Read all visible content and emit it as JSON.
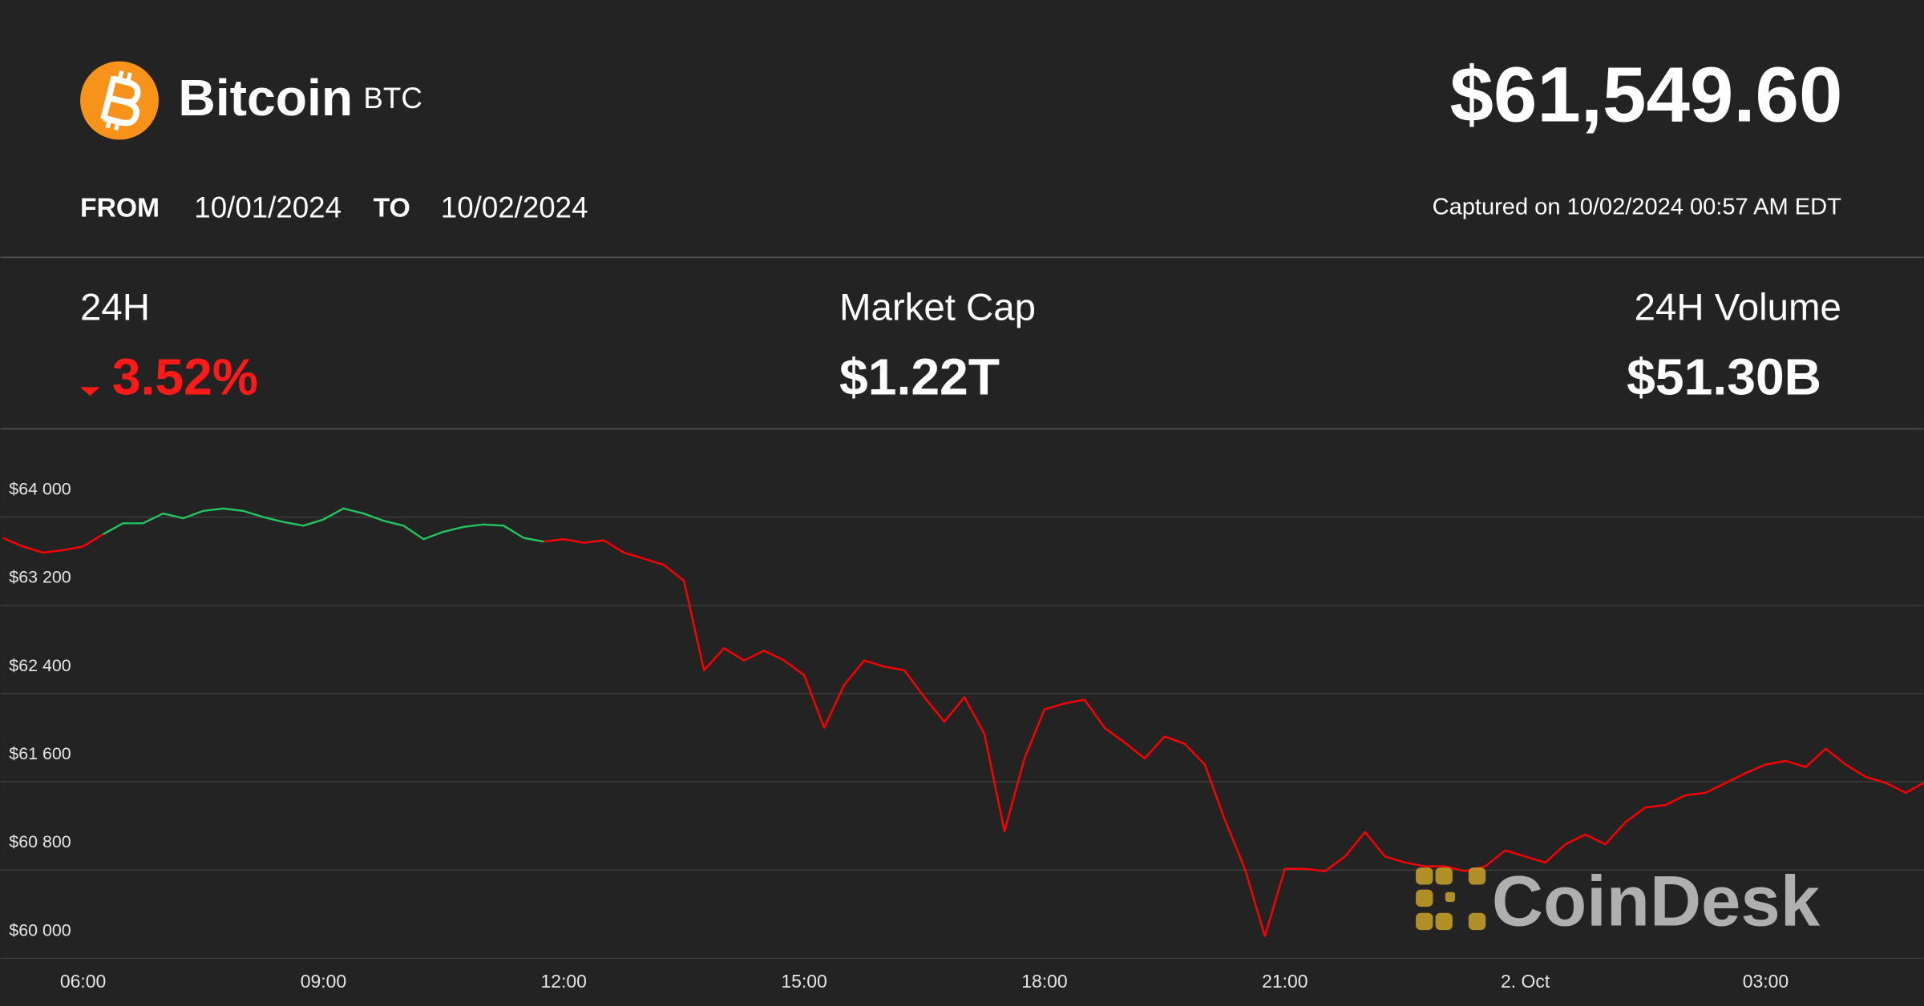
{
  "header": {
    "name": "Bitcoin",
    "symbol": "BTC",
    "price": "$61,549.60",
    "from_label": "FROM",
    "from_date": "10/01/2024",
    "to_label": "TO",
    "to_date": "10/02/2024",
    "captured": "Captured on 10/02/2024 00:57 AM EDT"
  },
  "stats": [
    {
      "label": "24H",
      "value": "3.52%"
    },
    {
      "label": "Market Cap",
      "value": "$1.22T"
    },
    {
      "label": "24H Volume",
      "value": "$51.30B"
    }
  ],
  "watermark": "CoinDesk",
  "chart_data": {
    "type": "line",
    "x": [
      5,
      5.25,
      5.5,
      5.75,
      6,
      6.25,
      6.5,
      6.75,
      7,
      7.25,
      7.5,
      7.75,
      8,
      8.25,
      8.5,
      8.75,
      9,
      9.25,
      9.5,
      9.75,
      10,
      10.25,
      10.5,
      10.75,
      11,
      11.25,
      11.5,
      11.75,
      12,
      12.25,
      12.5,
      12.75,
      13,
      13.25,
      13.5,
      13.75,
      14,
      14.25,
      14.5,
      14.75,
      15,
      15.25,
      15.5,
      15.75,
      16,
      16.25,
      16.5,
      16.75,
      17,
      17.25,
      17.5,
      17.75,
      18,
      18.25,
      18.5,
      18.75,
      19,
      19.25,
      19.5,
      19.75,
      20,
      20.25,
      20.5,
      20.75,
      21,
      21.25,
      21.5,
      21.75,
      22,
      22.25,
      22.5,
      22.75,
      23,
      23.25,
      23.5,
      23.75,
      24,
      24.25,
      24.5,
      24.75,
      25,
      25.25,
      25.5,
      25.75,
      26,
      26.25,
      26.5,
      26.75,
      27,
      27.25,
      27.5,
      27.75,
      28,
      28.25,
      28.5,
      28.75,
      28.97
    ],
    "series": [
      {
        "color": "#22c55e",
        "values": [
          null,
          null,
          null,
          null,
          null,
          63844,
          63944,
          63944,
          64033,
          63989,
          64056,
          64078,
          64056,
          64000,
          63956,
          63922,
          63978,
          64078,
          64033,
          63967,
          63922,
          63800,
          63867,
          63911,
          63933,
          63922,
          63811,
          63778,
          null,
          null,
          null,
          null,
          null,
          null,
          null,
          null,
          null,
          null,
          null,
          null,
          null,
          null,
          null,
          null,
          null,
          null,
          null,
          null,
          null,
          null,
          null,
          null,
          null,
          null,
          null,
          null,
          null,
          null,
          null,
          null,
          null,
          null,
          null,
          null,
          null,
          null,
          null,
          null,
          null,
          null,
          null,
          null,
          null,
          null,
          null,
          null,
          null,
          null,
          null,
          null,
          null,
          null,
          null,
          null,
          null,
          null,
          null,
          null,
          null,
          null,
          null,
          null,
          null,
          null,
          null,
          null,
          null
        ]
      },
      {
        "color": "#ff0000",
        "values": [
          63811,
          63733,
          63678,
          63700,
          63733,
          null,
          null,
          null,
          null,
          null,
          null,
          null,
          null,
          null,
          null,
          null,
          null,
          null,
          null,
          null,
          null,
          null,
          null,
          null,
          null,
          null,
          null,
          null,
          63800,
          63767,
          63789,
          63678,
          63622,
          63567,
          63422,
          62611,
          62811,
          62700,
          62789,
          62700,
          62567,
          62089,
          62478,
          62700,
          62644,
          62611,
          62367,
          62144,
          62367,
          62033,
          61150,
          61811,
          62256,
          62311,
          62344,
          62089,
          61956,
          61811,
          62011,
          61944,
          61756,
          61256,
          60811,
          60200,
          60811,
          60811,
          60789,
          60922,
          61144,
          60922,
          60867,
          60833,
          60833,
          60789,
          60833,
          60978,
          60922,
          60867,
          61033,
          61122,
          61033,
          61233,
          61367,
          61389,
          61478,
          61500,
          61589,
          61678,
          61756,
          61789,
          61733,
          61900,
          61756,
          61644,
          61589,
          61500,
          61589
        ]
      }
    ],
    "xlim": [
      4.97,
      28.97
    ],
    "xticks": [
      {
        "value": 6,
        "label": "06:00"
      },
      {
        "value": 9,
        "label": "09:00"
      },
      {
        "value": 12,
        "label": "12:00"
      },
      {
        "value": 15,
        "label": "15:00"
      },
      {
        "value": 18,
        "label": "18:00"
      },
      {
        "value": 21,
        "label": "21:00"
      },
      {
        "value": 24,
        "label": "2. Oct"
      },
      {
        "value": 27,
        "label": "03:00"
      }
    ],
    "ylim": [
      60000,
      64800
    ],
    "yticks": [
      {
        "value": 60000,
        "label": "$60 000"
      },
      {
        "value": 60800,
        "label": "$60 800"
      },
      {
        "value": 61600,
        "label": "$61 600"
      },
      {
        "value": 62400,
        "label": "$62 400"
      },
      {
        "value": 63200,
        "label": "$63 200"
      },
      {
        "value": 64000,
        "label": "$64 000"
      }
    ],
    "grid": true
  }
}
